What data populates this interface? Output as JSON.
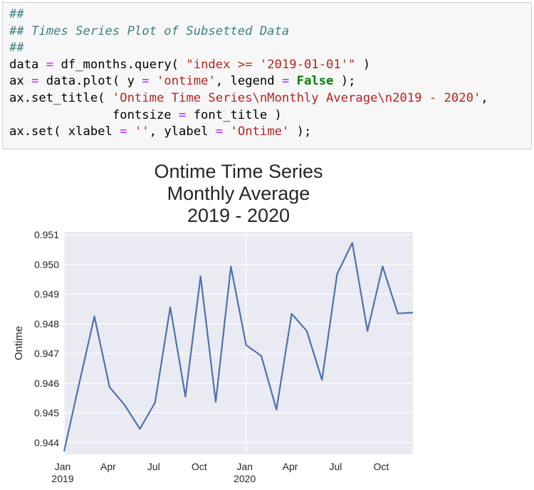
{
  "code_cell": {
    "lines": [
      [
        {
          "t": "##",
          "c": "com"
        }
      ],
      [
        {
          "t": "## Times Series Plot of Subsetted Data",
          "c": "com"
        }
      ],
      [
        {
          "t": "##",
          "c": "com"
        }
      ],
      [
        {
          "t": "data ",
          "c": ""
        },
        {
          "t": "=",
          "c": "op"
        },
        {
          "t": " df_months.query( ",
          "c": ""
        },
        {
          "t": "\"index >= '2019-01-01'\"",
          "c": "str"
        },
        {
          "t": " )",
          "c": ""
        }
      ],
      [
        {
          "t": "ax ",
          "c": ""
        },
        {
          "t": "=",
          "c": "op"
        },
        {
          "t": " data.plot( y ",
          "c": ""
        },
        {
          "t": "=",
          "c": "op"
        },
        {
          "t": " ",
          "c": ""
        },
        {
          "t": "'ontime'",
          "c": "str"
        },
        {
          "t": ", legend ",
          "c": ""
        },
        {
          "t": "=",
          "c": "op"
        },
        {
          "t": " ",
          "c": ""
        },
        {
          "t": "False",
          "c": "kw"
        },
        {
          "t": " );",
          "c": ""
        }
      ],
      [
        {
          "t": "ax.set_title( ",
          "c": ""
        },
        {
          "t": "'Ontime Time Series\\nMonthly Average\\n2019 - 2020'",
          "c": "str"
        },
        {
          "t": ",",
          "c": ""
        }
      ],
      [
        {
          "t": "              fontsize ",
          "c": ""
        },
        {
          "t": "=",
          "c": "op"
        },
        {
          "t": " font_title )",
          "c": ""
        }
      ],
      [
        {
          "t": "ax.set( xlabel ",
          "c": ""
        },
        {
          "t": "=",
          "c": "op"
        },
        {
          "t": " ",
          "c": ""
        },
        {
          "t": "''",
          "c": "str"
        },
        {
          "t": ", ylabel ",
          "c": ""
        },
        {
          "t": "=",
          "c": "op"
        },
        {
          "t": " ",
          "c": ""
        },
        {
          "t": "'Ontime'",
          "c": "str"
        },
        {
          "t": " );",
          "c": ""
        }
      ]
    ]
  },
  "chart_data": {
    "type": "line",
    "title_lines": [
      "Ontime Time Series",
      "Monthly Average",
      "2019 - 2020"
    ],
    "xlabel": "",
    "ylabel": "Ontime",
    "x": [
      "2019-01",
      "2019-02",
      "2019-03",
      "2019-04",
      "2019-05",
      "2019-06",
      "2019-07",
      "2019-08",
      "2019-09",
      "2019-10",
      "2019-11",
      "2019-12",
      "2020-01",
      "2020-02",
      "2020-03",
      "2020-04",
      "2020-05",
      "2020-06",
      "2020-07",
      "2020-08",
      "2020-09",
      "2020-10",
      "2020-11",
      "2020-12"
    ],
    "values": [
      0.9437,
      0.946,
      0.94825,
      0.94587,
      0.94526,
      0.94446,
      0.94535,
      0.94856,
      0.94555,
      0.9496,
      0.94537,
      0.94993,
      0.94728,
      0.94692,
      0.94511,
      0.94834,
      0.94776,
      0.94611,
      0.94968,
      0.95073,
      0.94776,
      0.94993,
      0.94835,
      0.94838
    ],
    "ylim": [
      0.9436,
      0.9511
    ],
    "yticks": [
      "0.944",
      "0.945",
      "0.946",
      "0.947",
      "0.948",
      "0.949",
      "0.950",
      "0.951"
    ],
    "xticks": [
      {
        "at": "2019-01",
        "label": "Jan",
        "sub": "2019"
      },
      {
        "at": "2019-04",
        "label": "Apr",
        "sub": ""
      },
      {
        "at": "2019-07",
        "label": "Jul",
        "sub": ""
      },
      {
        "at": "2019-10",
        "label": "Oct",
        "sub": ""
      },
      {
        "at": "2020-01",
        "label": "Jan",
        "sub": "2020"
      },
      {
        "at": "2020-04",
        "label": "Apr",
        "sub": ""
      },
      {
        "at": "2020-07",
        "label": "Jul",
        "sub": ""
      },
      {
        "at": "2020-10",
        "label": "Oct",
        "sub": ""
      }
    ],
    "grid": true,
    "colors": {
      "line": "#4c72b0",
      "background": "#eaeaf2",
      "grid": "#ffffff",
      "text": "#262626"
    }
  }
}
